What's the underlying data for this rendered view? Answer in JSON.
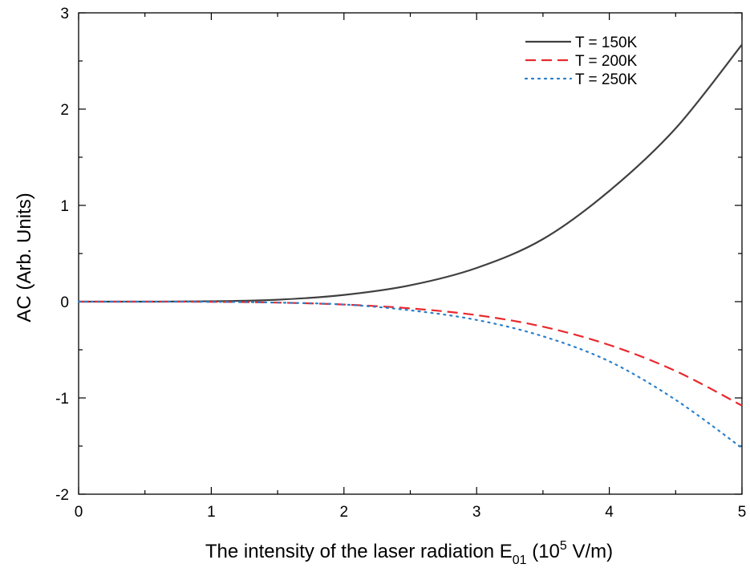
{
  "chart_data": {
    "type": "line",
    "xlabel": {
      "main": "The intensity of the laser radiation E",
      "sub": "01",
      "mid": " (10",
      "sup": "5",
      "end": " V/m)"
    },
    "ylabel": "AC (Arb. Units)",
    "xlim": [
      0,
      5
    ],
    "ylim": [
      -2,
      3
    ],
    "x_ticks": [
      "0",
      "1",
      "2",
      "3",
      "4",
      "5"
    ],
    "y_ticks": [
      "-2",
      "-1",
      "0",
      "1",
      "2",
      "3"
    ],
    "grid": false,
    "legend_position": "top-right",
    "x": [
      0,
      0.5,
      1,
      1.5,
      2,
      2.5,
      3,
      3.5,
      4,
      4.5,
      5
    ],
    "series": [
      {
        "name": "T = 150K",
        "color": "#404040",
        "dash": "solid",
        "values": [
          0,
          0.0,
          0.004,
          0.02,
          0.07,
          0.17,
          0.35,
          0.65,
          1.15,
          1.8,
          2.67
        ]
      },
      {
        "name": "T = 200K",
        "color": "#e8292e",
        "dash": "dashed",
        "values": [
          0,
          0.0,
          -0.002,
          -0.01,
          -0.03,
          -0.07,
          -0.14,
          -0.26,
          -0.45,
          -0.72,
          -1.08
        ]
      },
      {
        "name": "T = 250K",
        "color": "#2a7fc9",
        "dash": "dotted",
        "values": [
          0,
          0.0,
          -0.002,
          -0.01,
          -0.03,
          -0.09,
          -0.19,
          -0.36,
          -0.62,
          -1.02,
          -1.52
        ]
      }
    ]
  }
}
